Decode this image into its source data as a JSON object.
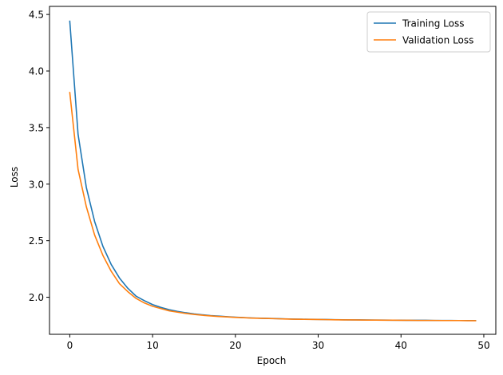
{
  "chart_data": {
    "type": "line",
    "title": "",
    "xlabel": "Epoch",
    "ylabel": "Loss",
    "xlim": [
      -2.45,
      51.45
    ],
    "ylim": [
      1.6724,
      4.5714
    ],
    "xticks": [
      0,
      10,
      20,
      30,
      40,
      50
    ],
    "yticks": [
      2.0,
      2.5,
      3.0,
      3.5,
      4.0,
      4.5
    ],
    "ytick_labels": [
      "2.0",
      "2.5",
      "3.0",
      "3.5",
      "4.0",
      "4.5"
    ],
    "grid": false,
    "legend_position": "top-right",
    "series": [
      {
        "name": "Training Loss",
        "color": "#1f77b4",
        "x": [
          0,
          1,
          2,
          3,
          4,
          5,
          6,
          7,
          8,
          9,
          10,
          11,
          12,
          13,
          14,
          15,
          16,
          17,
          18,
          19,
          20,
          21,
          22,
          23,
          24,
          25,
          26,
          27,
          28,
          29,
          30,
          31,
          32,
          33,
          34,
          35,
          36,
          37,
          38,
          39,
          40,
          41,
          42,
          43,
          44,
          45,
          46,
          47,
          48,
          49
        ],
        "values": [
          4.44,
          3.44,
          2.97,
          2.67,
          2.45,
          2.29,
          2.17,
          2.08,
          2.01,
          1.97,
          1.935,
          1.91,
          1.89,
          1.875,
          1.863,
          1.853,
          1.845,
          1.838,
          1.833,
          1.828,
          1.824,
          1.82,
          1.817,
          1.815,
          1.813,
          1.811,
          1.809,
          1.807,
          1.806,
          1.805,
          1.804,
          1.803,
          1.802,
          1.801,
          1.8,
          1.8,
          1.799,
          1.798,
          1.798,
          1.797,
          1.797,
          1.796,
          1.796,
          1.796,
          1.795,
          1.795,
          1.795,
          1.794,
          1.794,
          1.794
        ]
      },
      {
        "name": "Validation Loss",
        "color": "#ff7f0e",
        "x": [
          0,
          1,
          2,
          3,
          4,
          5,
          6,
          7,
          8,
          9,
          10,
          11,
          12,
          13,
          14,
          15,
          16,
          17,
          18,
          19,
          20,
          21,
          22,
          23,
          24,
          25,
          26,
          27,
          28,
          29,
          30,
          31,
          32,
          33,
          34,
          35,
          36,
          37,
          38,
          39,
          40,
          41,
          42,
          43,
          44,
          45,
          46,
          47,
          48,
          49
        ],
        "values": [
          3.81,
          3.13,
          2.8,
          2.55,
          2.37,
          2.23,
          2.12,
          2.05,
          1.99,
          1.95,
          1.92,
          1.9,
          1.88,
          1.868,
          1.857,
          1.848,
          1.841,
          1.835,
          1.83,
          1.826,
          1.822,
          1.819,
          1.816,
          1.814,
          1.812,
          1.81,
          1.808,
          1.806,
          1.805,
          1.804,
          1.803,
          1.802,
          1.801,
          1.8,
          1.8,
          1.799,
          1.798,
          1.798,
          1.797,
          1.797,
          1.796,
          1.796,
          1.795,
          1.795,
          1.795,
          1.794,
          1.794,
          1.794,
          1.793,
          1.793
        ]
      }
    ]
  }
}
